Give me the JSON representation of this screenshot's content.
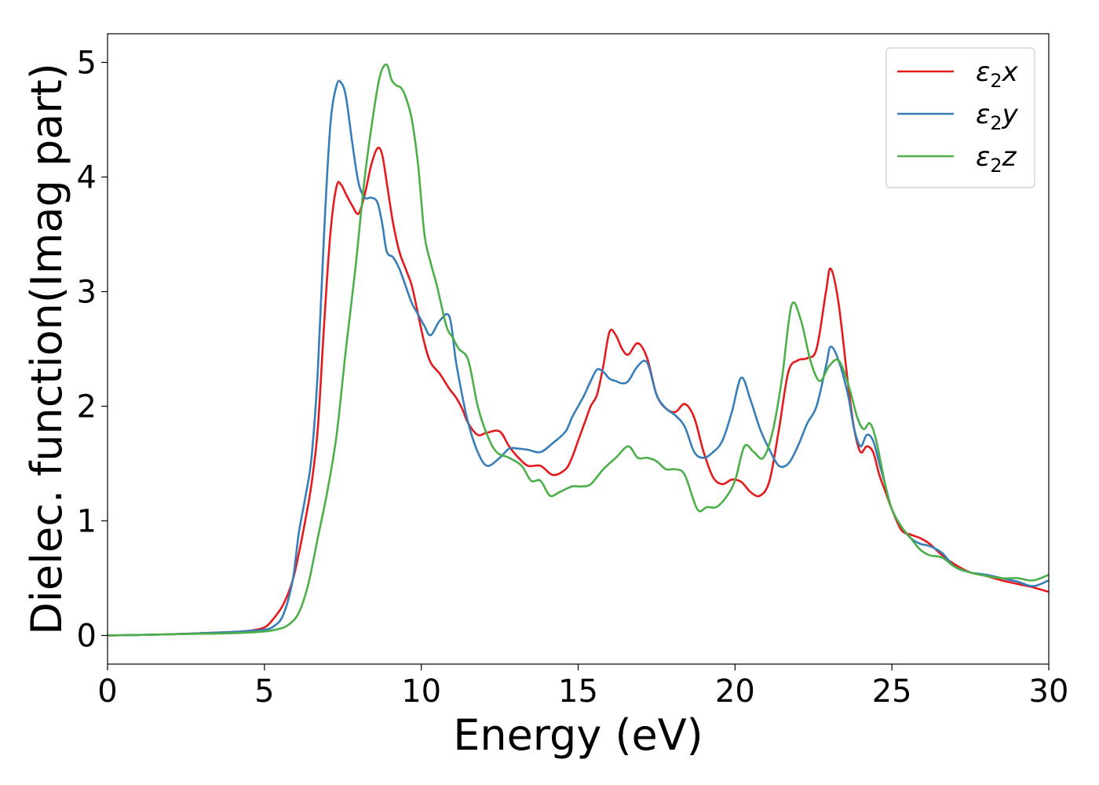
{
  "chart_data": {
    "type": "line",
    "title": "",
    "xlabel": "Energy (eV)",
    "ylabel": "Dielec. function(Imag part)",
    "xlim": [
      0,
      30
    ],
    "ylim": [
      -0.25,
      5.25
    ],
    "xticks": [
      0,
      5,
      10,
      15,
      20,
      25,
      30
    ],
    "yticks": [
      0,
      1,
      2,
      3,
      4,
      5
    ],
    "grid": false,
    "legend_position": "top-right",
    "series": [
      {
        "name": "ε₂x",
        "legend_base": "ε",
        "legend_sub": "2",
        "legend_suffix": "x",
        "color": "#e41a1c",
        "x": [
          0,
          1,
          2,
          3,
          4,
          4.5,
          5,
          5.3,
          5.6,
          5.9,
          6.1,
          6.3,
          6.5,
          6.7,
          6.9,
          7.1,
          7.3,
          7.45,
          7.6,
          7.8,
          8.0,
          8.2,
          8.4,
          8.6,
          8.75,
          8.9,
          9.1,
          9.3,
          9.5,
          9.7,
          9.9,
          10.1,
          10.3,
          10.6,
          10.9,
          11.1,
          11.3,
          11.5,
          11.8,
          12.1,
          12.5,
          12.8,
          13.1,
          13.4,
          13.8,
          14.2,
          14.6,
          14.8,
          15.0,
          15.2,
          15.4,
          15.6,
          15.8,
          16.0,
          16.2,
          16.4,
          16.6,
          16.9,
          17.2,
          17.5,
          17.8,
          18.1,
          18.4,
          18.7,
          19.0,
          19.3,
          19.6,
          19.9,
          20.2,
          20.5,
          20.8,
          21.1,
          21.4,
          21.7,
          22.0,
          22.3,
          22.6,
          22.9,
          23.05,
          23.3,
          23.6,
          23.8,
          24.0,
          24.2,
          24.4,
          24.6,
          24.8,
          25.0,
          25.3,
          25.6,
          25.9,
          26.2,
          26.6,
          27.0,
          27.5,
          28.0,
          28.5,
          29.0,
          29.5,
          30.0
        ],
        "y": [
          0,
          0.005,
          0.01,
          0.02,
          0.03,
          0.04,
          0.07,
          0.15,
          0.27,
          0.48,
          0.72,
          1.0,
          1.32,
          1.8,
          2.7,
          3.5,
          3.92,
          3.93,
          3.85,
          3.75,
          3.68,
          3.85,
          4.1,
          4.25,
          4.2,
          3.95,
          3.6,
          3.35,
          3.2,
          3.05,
          2.8,
          2.55,
          2.38,
          2.28,
          2.15,
          2.08,
          1.98,
          1.85,
          1.75,
          1.77,
          1.78,
          1.65,
          1.55,
          1.48,
          1.48,
          1.4,
          1.45,
          1.55,
          1.7,
          1.85,
          2.0,
          2.1,
          2.35,
          2.65,
          2.62,
          2.5,
          2.45,
          2.55,
          2.42,
          2.1,
          1.98,
          1.95,
          2.02,
          1.9,
          1.6,
          1.38,
          1.32,
          1.36,
          1.34,
          1.25,
          1.22,
          1.35,
          1.8,
          2.3,
          2.4,
          2.42,
          2.5,
          3.0,
          3.2,
          2.9,
          2.2,
          1.8,
          1.6,
          1.65,
          1.6,
          1.4,
          1.25,
          1.1,
          0.92,
          0.88,
          0.85,
          0.8,
          0.7,
          0.62,
          0.55,
          0.52,
          0.48,
          0.45,
          0.42,
          0.38
        ]
      },
      {
        "name": "ε₂y",
        "legend_base": "ε",
        "legend_sub": "2",
        "legend_suffix": "y",
        "color": "#377eb8",
        "x": [
          0,
          1,
          2,
          3,
          4,
          4.5,
          5,
          5.3,
          5.6,
          5.9,
          6.1,
          6.3,
          6.5,
          6.7,
          6.9,
          7.1,
          7.3,
          7.45,
          7.6,
          7.8,
          8.0,
          8.2,
          8.4,
          8.6,
          8.75,
          8.9,
          9.1,
          9.3,
          9.5,
          9.7,
          9.9,
          10.1,
          10.3,
          10.6,
          10.9,
          11.1,
          11.3,
          11.5,
          11.8,
          12.1,
          12.5,
          12.8,
          13.1,
          13.4,
          13.8,
          14.2,
          14.6,
          14.8,
          15.0,
          15.2,
          15.4,
          15.6,
          15.8,
          16.0,
          16.2,
          16.4,
          16.6,
          16.9,
          17.2,
          17.5,
          17.8,
          18.1,
          18.4,
          18.7,
          19.0,
          19.3,
          19.6,
          19.9,
          20.2,
          20.5,
          20.8,
          21.1,
          21.4,
          21.7,
          22.0,
          22.3,
          22.6,
          22.9,
          23.05,
          23.3,
          23.6,
          23.8,
          24.0,
          24.2,
          24.4,
          24.6,
          24.8,
          25.0,
          25.3,
          25.6,
          25.9,
          26.2,
          26.6,
          27.0,
          27.5,
          28.0,
          28.5,
          29.0,
          29.5,
          30.0
        ],
        "y": [
          0,
          0.005,
          0.01,
          0.02,
          0.03,
          0.04,
          0.05,
          0.08,
          0.18,
          0.48,
          0.9,
          1.2,
          1.55,
          2.3,
          3.5,
          4.45,
          4.8,
          4.82,
          4.7,
          4.3,
          3.95,
          3.82,
          3.82,
          3.78,
          3.6,
          3.35,
          3.3,
          3.2,
          3.05,
          2.9,
          2.8,
          2.7,
          2.62,
          2.75,
          2.78,
          2.4,
          2.1,
          1.85,
          1.6,
          1.48,
          1.55,
          1.63,
          1.63,
          1.62,
          1.6,
          1.68,
          1.78,
          1.9,
          2.0,
          2.1,
          2.22,
          2.32,
          2.3,
          2.24,
          2.22,
          2.2,
          2.22,
          2.35,
          2.38,
          2.1,
          1.98,
          1.92,
          1.82,
          1.6,
          1.55,
          1.6,
          1.7,
          1.95,
          2.25,
          2.05,
          1.8,
          1.62,
          1.48,
          1.5,
          1.65,
          1.85,
          2.0,
          2.35,
          2.52,
          2.4,
          2.1,
          1.8,
          1.65,
          1.75,
          1.7,
          1.5,
          1.3,
          1.1,
          0.95,
          0.85,
          0.8,
          0.78,
          0.72,
          0.6,
          0.55,
          0.53,
          0.5,
          0.47,
          0.43,
          0.48
        ]
      },
      {
        "name": "ε₂z",
        "legend_base": "ε",
        "legend_sub": "2",
        "legend_suffix": "z",
        "color": "#4daf4a",
        "x": [
          0,
          1,
          2,
          3,
          4,
          5,
          5.5,
          5.8,
          6.1,
          6.4,
          6.7,
          7.0,
          7.3,
          7.6,
          7.9,
          8.2,
          8.5,
          8.7,
          8.9,
          9.05,
          9.2,
          9.35,
          9.5,
          9.7,
          9.9,
          10.1,
          10.3,
          10.5,
          10.8,
          11.0,
          11.2,
          11.5,
          11.8,
          12.1,
          12.4,
          12.8,
          13.2,
          13.5,
          13.8,
          14.1,
          14.4,
          14.8,
          15.1,
          15.4,
          15.8,
          16.2,
          16.6,
          16.9,
          17.2,
          17.5,
          17.8,
          18.1,
          18.4,
          18.8,
          19.1,
          19.4,
          19.7,
          20.0,
          20.3,
          20.6,
          20.9,
          21.2,
          21.5,
          21.8,
          22.1,
          22.4,
          22.7,
          23.0,
          23.3,
          23.6,
          23.9,
          24.1,
          24.3,
          24.5,
          24.8,
          25.0,
          25.3,
          25.6,
          25.9,
          26.2,
          26.6,
          27.0,
          27.5,
          28.0,
          28.5,
          29.0,
          29.5,
          30.0
        ],
        "y": [
          0,
          0.005,
          0.01,
          0.015,
          0.02,
          0.035,
          0.06,
          0.1,
          0.2,
          0.45,
          0.85,
          1.25,
          1.75,
          2.5,
          3.2,
          4.0,
          4.6,
          4.9,
          4.98,
          4.85,
          4.8,
          4.78,
          4.7,
          4.5,
          4.1,
          3.5,
          3.25,
          3.05,
          2.7,
          2.6,
          2.5,
          2.4,
          2.0,
          1.75,
          1.6,
          1.55,
          1.48,
          1.35,
          1.35,
          1.22,
          1.25,
          1.3,
          1.3,
          1.32,
          1.45,
          1.55,
          1.65,
          1.55,
          1.55,
          1.52,
          1.45,
          1.45,
          1.4,
          1.1,
          1.12,
          1.12,
          1.2,
          1.35,
          1.65,
          1.6,
          1.55,
          1.78,
          2.25,
          2.88,
          2.75,
          2.4,
          2.22,
          2.35,
          2.4,
          2.2,
          1.9,
          1.8,
          1.85,
          1.7,
          1.3,
          1.1,
          0.95,
          0.85,
          0.75,
          0.7,
          0.68,
          0.6,
          0.55,
          0.52,
          0.5,
          0.5,
          0.48,
          0.53
        ]
      }
    ]
  }
}
